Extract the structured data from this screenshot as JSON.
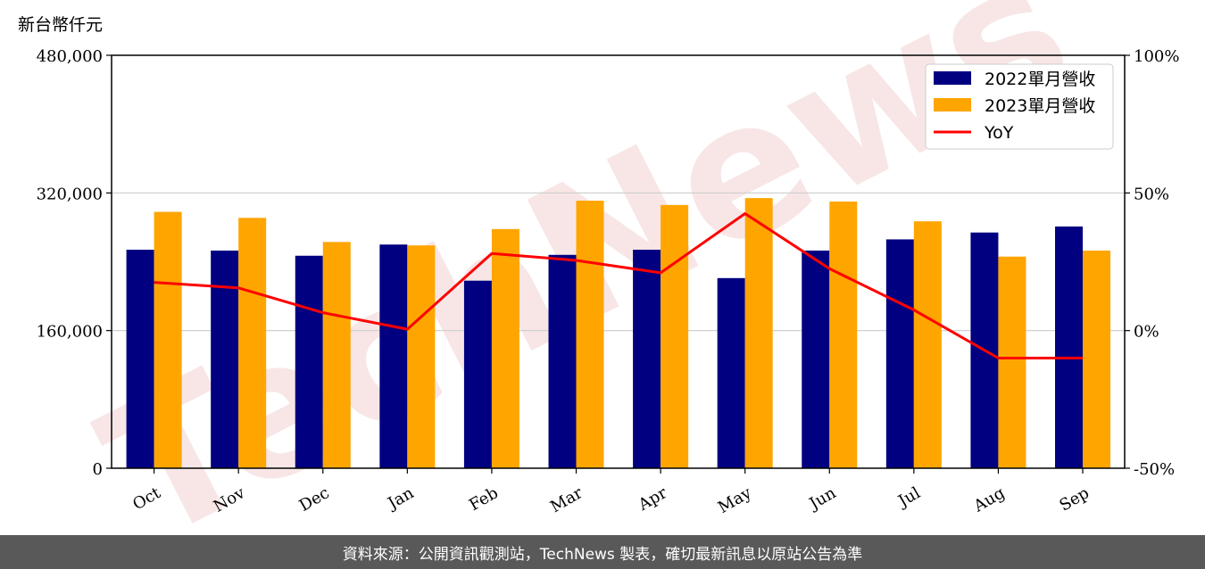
{
  "chart_data": {
    "type": "bar",
    "unit_label": "新台幣仟元",
    "categories": [
      "Oct",
      "Nov",
      "Dec",
      "Jan",
      "Feb",
      "Mar",
      "Apr",
      "May",
      "Jun",
      "Jul",
      "Aug",
      "Sep"
    ],
    "series": [
      {
        "name": "2022單月營收",
        "type": "bar",
        "axis": "left",
        "color": "#000080",
        "values": [
          254000,
          253000,
          247000,
          260000,
          218000,
          248000,
          254000,
          221000,
          253000,
          266000,
          274000,
          281000
        ]
      },
      {
        "name": "2023單月營收",
        "type": "bar",
        "axis": "left",
        "color": "#ffa500",
        "values": [
          298000,
          291000,
          263000,
          259000,
          278000,
          311000,
          306000,
          314000,
          310000,
          287000,
          246000,
          253000
        ]
      },
      {
        "name": "YoY",
        "type": "line",
        "axis": "right",
        "color": "#ff0000",
        "values": [
          17.5,
          15.5,
          6.5,
          0.5,
          28.0,
          25.5,
          21.0,
          42.5,
          22.5,
          7.5,
          -10.0,
          -10.0
        ]
      }
    ],
    "y_left": {
      "min": 0,
      "max": 480000,
      "ticks": [
        0,
        160000,
        320000,
        480000
      ],
      "tick_labels": [
        "0",
        "160,000",
        "320,000",
        "480,000"
      ]
    },
    "y_right": {
      "min": -50,
      "max": 100,
      "ticks": [
        -50,
        0,
        50,
        100
      ],
      "tick_labels": [
        "-50%",
        "0%",
        "50%",
        "100%"
      ]
    },
    "grid": "horizontal",
    "legend_position": "top-right"
  },
  "watermark": "TechNews",
  "footer": {
    "text": "資料來源：公開資訊觀測站，TechNews 製表，確切最新訊息以原站公告為準"
  }
}
